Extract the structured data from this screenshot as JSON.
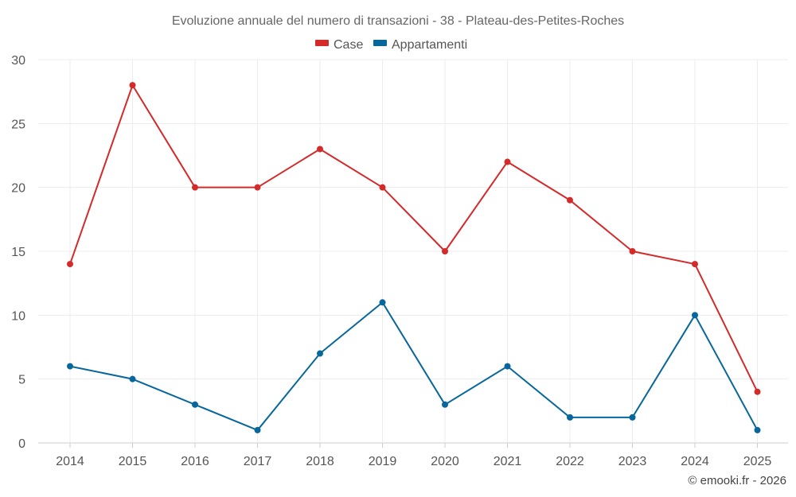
{
  "chart_data": {
    "type": "line",
    "title": "Evoluzione annuale del numero di transazioni - 38 - Plateau-des-Petites-Roches",
    "xlabel": "",
    "ylabel": "",
    "categories": [
      "2014",
      "2015",
      "2016",
      "2017",
      "2018",
      "2019",
      "2020",
      "2021",
      "2022",
      "2023",
      "2024",
      "2025"
    ],
    "ylim": [
      0,
      30
    ],
    "yticks": [
      0,
      5,
      10,
      15,
      20,
      25,
      30
    ],
    "grid": true,
    "legend_position": "top-center",
    "series": [
      {
        "name": "Case",
        "color": "#d42a2a",
        "values": [
          14,
          28,
          20,
          20,
          23,
          20,
          15,
          22,
          19,
          15,
          14,
          4
        ]
      },
      {
        "name": "Appartamenti",
        "color": "#07679c",
        "values": [
          6,
          5,
          3,
          1,
          7,
          11,
          3,
          6,
          2,
          2,
          10,
          1
        ]
      }
    ]
  },
  "credit": "© emooki.fr - 2026"
}
